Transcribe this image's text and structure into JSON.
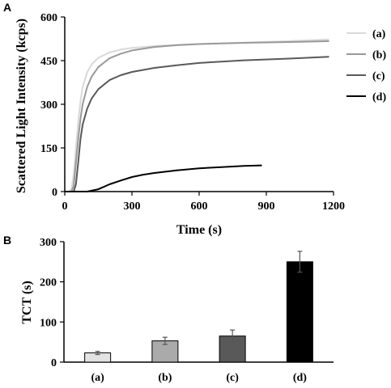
{
  "chart_data": [
    {
      "panel": "A",
      "type": "line",
      "xlabel": "Time (s)",
      "ylabel": "Scattered Light Intensity (kcps)",
      "xlim": [
        0,
        1200
      ],
      "ylim": [
        0,
        600
      ],
      "xticks": [
        0,
        300,
        600,
        900,
        1200
      ],
      "yticks": [
        0,
        150,
        300,
        450,
        600
      ],
      "legend_position": "right",
      "series": [
        {
          "name": "(a)",
          "color": "#d9d9d9",
          "x": [
            0,
            20,
            30,
            40,
            50,
            60,
            70,
            80,
            100,
            120,
            150,
            200,
            250,
            300,
            400,
            500,
            600,
            800,
            1000,
            1180
          ],
          "y": [
            0,
            0,
            10,
            60,
            150,
            240,
            310,
            360,
            410,
            437,
            460,
            478,
            488,
            494,
            500,
            504,
            507,
            512,
            517,
            523
          ]
        },
        {
          "name": "(b)",
          "color": "#999999",
          "x": [
            0,
            30,
            40,
            50,
            60,
            70,
            80,
            100,
            120,
            150,
            200,
            250,
            300,
            400,
            500,
            600,
            800,
            1000,
            1180
          ],
          "y": [
            0,
            0,
            20,
            100,
            180,
            250,
            300,
            360,
            395,
            428,
            458,
            474,
            485,
            497,
            503,
            507,
            511,
            514,
            517
          ]
        },
        {
          "name": "(c)",
          "color": "#595959",
          "x": [
            0,
            40,
            50,
            60,
            70,
            80,
            100,
            120,
            150,
            200,
            250,
            300,
            400,
            500,
            600,
            800,
            1000,
            1180
          ],
          "y": [
            0,
            0,
            25,
            100,
            180,
            230,
            285,
            320,
            352,
            383,
            400,
            411,
            425,
            434,
            442,
            451,
            457,
            463
          ]
        },
        {
          "name": "(d)",
          "color": "#000000",
          "x": [
            0,
            100,
            150,
            200,
            250,
            300,
            350,
            400,
            500,
            600,
            700,
            800,
            880
          ],
          "y": [
            0,
            0,
            8,
            25,
            38,
            50,
            58,
            64,
            73,
            80,
            84,
            88,
            90
          ]
        }
      ]
    },
    {
      "panel": "B",
      "type": "bar",
      "ylabel": "TCT (s)",
      "ylim": [
        0,
        300
      ],
      "yticks": [
        0,
        100,
        200,
        300
      ],
      "categories": [
        "(a)",
        "(b)",
        "(c)",
        "(d)"
      ],
      "values": [
        23,
        53,
        65,
        250
      ],
      "errors": [
        4,
        9,
        15,
        26
      ],
      "colors": [
        "#e3e3e3",
        "#aaaaaa",
        "#595959",
        "#000000"
      ]
    }
  ]
}
